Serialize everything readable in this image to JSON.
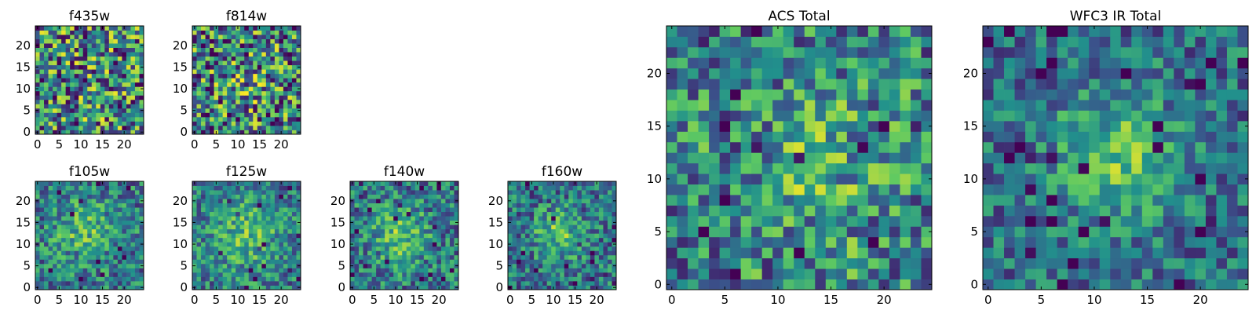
{
  "figure": {
    "colormap": "viridis",
    "colormap_stops": [
      "#440154",
      "#3b528b",
      "#21918c",
      "#5ec962",
      "#fde725"
    ]
  },
  "chart_data": [
    {
      "type": "heatmap",
      "title": "f435w",
      "xlim": [
        0,
        24
      ],
      "ylim": [
        0,
        24
      ],
      "xticks": [
        "0",
        "5",
        "10",
        "15",
        "20"
      ],
      "yticks": [
        "0",
        "5",
        "10",
        "15",
        "20"
      ],
      "grid_size": 25,
      "noise": 0.58,
      "blob_strength": 0.05,
      "blob_center": [
        12,
        12
      ],
      "blob_sigma": 5,
      "seed": 3
    },
    {
      "type": "heatmap",
      "title": "f814w",
      "xlim": [
        0,
        24
      ],
      "ylim": [
        0,
        24
      ],
      "xticks": [
        "0",
        "5",
        "10",
        "15",
        "20"
      ],
      "yticks": [
        "0",
        "5",
        "10",
        "15",
        "20"
      ],
      "grid_size": 25,
      "noise": 0.58,
      "blob_strength": 0.1,
      "blob_center": [
        12,
        12
      ],
      "blob_sigma": 5,
      "seed": 7
    },
    {
      "type": "heatmap",
      "title": "f105w",
      "xlim": [
        0,
        24
      ],
      "ylim": [
        0,
        24
      ],
      "xticks": [
        "0",
        "5",
        "10",
        "15",
        "20"
      ],
      "yticks": [
        "0",
        "5",
        "10",
        "15",
        "20"
      ],
      "grid_size": 25,
      "noise": 0.34,
      "blob_strength": 0.25,
      "blob_center": [
        11,
        13
      ],
      "blob_sigma": 5,
      "seed": 11
    },
    {
      "type": "heatmap",
      "title": "f125w",
      "xlim": [
        0,
        24
      ],
      "ylim": [
        0,
        24
      ],
      "xticks": [
        "0",
        "5",
        "10",
        "15",
        "20"
      ],
      "yticks": [
        "0",
        "5",
        "10",
        "15",
        "20"
      ],
      "grid_size": 25,
      "noise": 0.32,
      "blob_strength": 0.28,
      "blob_center": [
        12,
        12
      ],
      "blob_sigma": 6,
      "seed": 13
    },
    {
      "type": "heatmap",
      "title": "f140w",
      "xlim": [
        0,
        24
      ],
      "ylim": [
        0,
        24
      ],
      "xticks": [
        "0",
        "5",
        "10",
        "15",
        "20"
      ],
      "yticks": [
        "0",
        "5",
        "10",
        "15",
        "20"
      ],
      "grid_size": 25,
      "noise": 0.34,
      "blob_strength": 0.3,
      "blob_center": [
        11,
        12
      ],
      "blob_sigma": 5,
      "seed": 17
    },
    {
      "type": "heatmap",
      "title": "f160w",
      "xlim": [
        0,
        24
      ],
      "ylim": [
        0,
        24
      ],
      "xticks": [
        "0",
        "5",
        "10",
        "15",
        "20"
      ],
      "yticks": [
        "0",
        "5",
        "10",
        "15",
        "20"
      ],
      "grid_size": 25,
      "noise": 0.34,
      "blob_strength": 0.32,
      "blob_center": [
        11,
        12
      ],
      "blob_sigma": 4,
      "seed": 19
    },
    {
      "type": "heatmap",
      "title": "ACS Total",
      "xlim": [
        0,
        24
      ],
      "ylim": [
        0,
        24
      ],
      "xticks": [
        "0",
        "5",
        "10",
        "15",
        "20"
      ],
      "yticks": [
        "0",
        "5",
        "10",
        "15",
        "20"
      ],
      "grid_size": 25,
      "noise": 0.42,
      "blob_strength": 0.18,
      "blob_center": [
        14,
        11
      ],
      "blob_sigma": 6,
      "seed": 23
    },
    {
      "type": "heatmap",
      "title": "WFC3 IR Total",
      "xlim": [
        0,
        24
      ],
      "ylim": [
        0,
        24
      ],
      "xticks": [
        "0",
        "5",
        "10",
        "15",
        "20"
      ],
      "yticks": [
        "0",
        "5",
        "10",
        "15",
        "20"
      ],
      "grid_size": 25,
      "noise": 0.3,
      "blob_strength": 0.35,
      "blob_center": [
        12,
        12
      ],
      "blob_sigma": 4,
      "seed": 29
    }
  ]
}
